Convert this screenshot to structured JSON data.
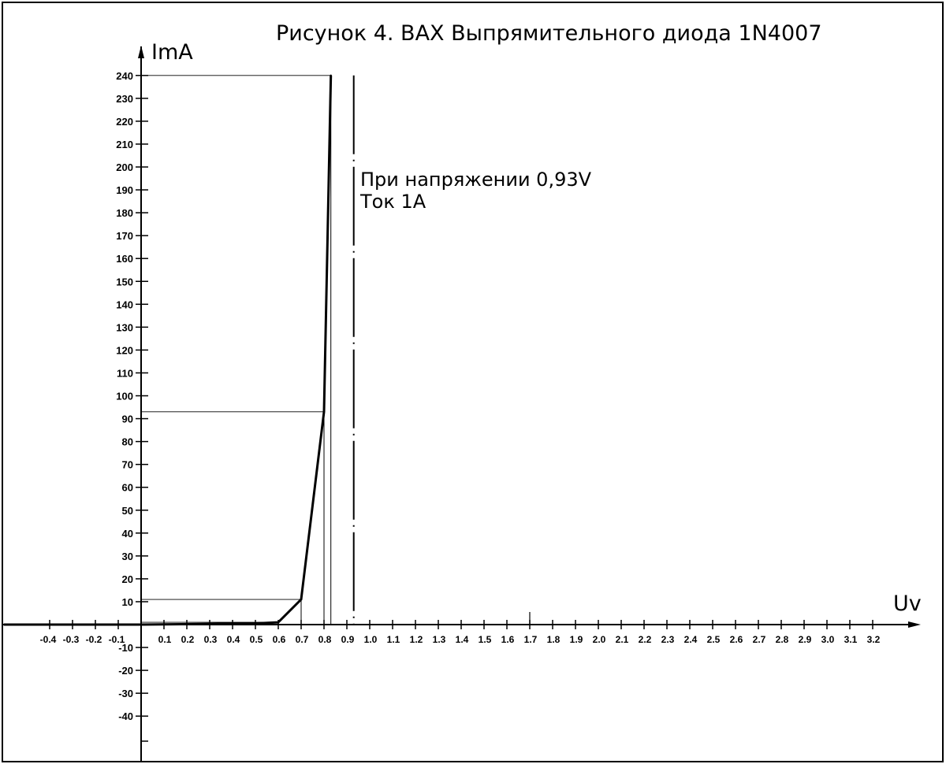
{
  "chart_data": {
    "type": "line",
    "title": "Рисунок 4. ВАХ Выпрямительного диода 1N4007",
    "xlabel": "Uv",
    "ylabel": "ImA",
    "xlim": [
      -0.6,
      3.25
    ],
    "ylim": [
      -53,
      240
    ],
    "grid": false,
    "x_ticks": [
      "-0.4",
      "-0.3",
      "-0.2",
      "-0.1",
      "0.1",
      "0.2",
      "0.3",
      "0.4",
      "0.5",
      "0.6",
      "0.7",
      "0.8",
      "0.9",
      "1.0",
      "1.1",
      "1.2",
      "1.3",
      "1.4",
      "1.5",
      "1.6",
      "1.7",
      "1.8",
      "1.9",
      "2.0",
      "2.1",
      "2.2",
      "2.3",
      "2.4",
      "2.5",
      "2.6",
      "2.7",
      "2.8",
      "2.9",
      "3.0",
      "3.1",
      "3.2"
    ],
    "y_ticks": [
      "240",
      "230",
      "220",
      "210",
      "200",
      "190",
      "180",
      "170",
      "160",
      "150",
      "140",
      "130",
      "120",
      "110",
      "100",
      "90",
      "80",
      "70",
      "60",
      "50",
      "40",
      "30",
      "20",
      "10",
      "-10",
      "-20",
      "-30",
      "-40"
    ],
    "series": [
      {
        "x": [
          -0.6,
          0.0,
          0.5,
          0.6,
          0.7,
          0.8,
          0.83
        ],
        "y": [
          0,
          0,
          0.5,
          1,
          11,
          93,
          240
        ]
      }
    ],
    "reference_values": {
      "x": [
        0.6,
        0.7,
        0.8,
        0.83
      ],
      "y": [
        1,
        11,
        93,
        240
      ]
    },
    "vertical_marker_x": 0.93,
    "annotations": [
      "При напряжении 0,93V",
      "Ток 1A"
    ]
  }
}
